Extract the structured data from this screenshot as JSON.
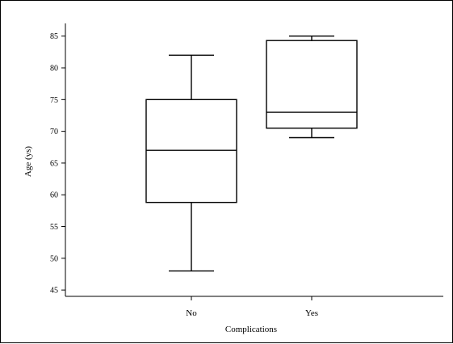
{
  "chart_data": {
    "type": "box",
    "xlabel": "Complications",
    "ylabel": "Age (ys)",
    "ylim": [
      44,
      87
    ],
    "yticks": [
      45,
      50,
      55,
      60,
      65,
      70,
      75,
      80,
      85
    ],
    "categories": [
      "No",
      "Yes"
    ],
    "boxes": [
      {
        "category": "No",
        "min": 48,
        "q1": 58.8,
        "median": 67,
        "q3": 75,
        "max": 82
      },
      {
        "category": "Yes",
        "min": 69,
        "q1": 70.5,
        "median": 73,
        "q3": 84.3,
        "max": 85
      }
    ],
    "grid": false,
    "colors": {
      "stroke": "#000000",
      "fill": "#ffffff"
    }
  }
}
